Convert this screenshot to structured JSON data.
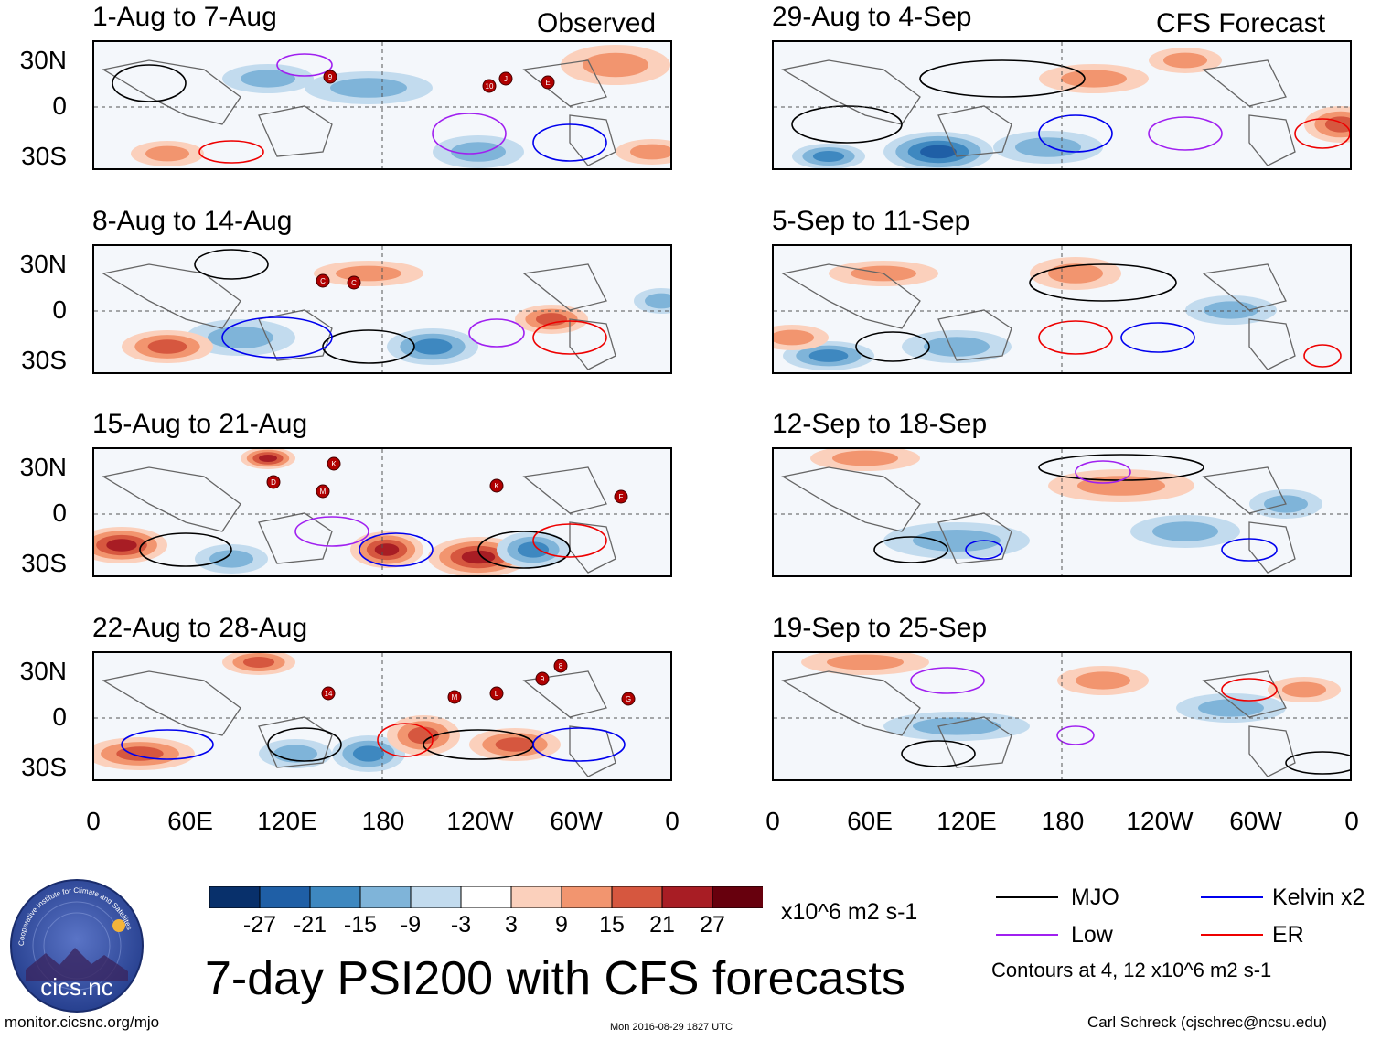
{
  "panels": {
    "observed_tag": "Observed",
    "forecast_tag": "CFS Forecast",
    "titles": [
      "1-Aug to 7-Aug",
      "8-Aug to 14-Aug",
      "15-Aug to 21-Aug",
      "22-Aug to 28-Aug",
      "29-Aug to 4-Sep",
      "5-Sep to 11-Sep",
      "12-Sep to 18-Sep",
      "19-Sep to 25-Sep"
    ]
  },
  "axes": {
    "lat_labels": [
      "30N",
      "0",
      "30S"
    ],
    "lon_labels": [
      "0",
      "60E",
      "120E",
      "180",
      "120W",
      "60W",
      "0"
    ]
  },
  "colorbar": {
    "labels": [
      "-27",
      "-21",
      "-15",
      "-9",
      "-3",
      "3",
      "9",
      "15",
      "21",
      "27"
    ],
    "colors": [
      "#08306b",
      "#1f5fa6",
      "#3e88c0",
      "#7fb4d9",
      "#c2dbee",
      "#ffffff",
      "#fbd0bc",
      "#f2956f",
      "#d6573f",
      "#a81d24",
      "#67000d"
    ],
    "units": "x10^6 m2 s-1"
  },
  "legend": {
    "items": [
      {
        "label": "MJO",
        "color": "#000000"
      },
      {
        "label": "Kelvin x2",
        "color": "#0000ee"
      },
      {
        "label": "Low",
        "color": "#a020f0"
      },
      {
        "label": "ER",
        "color": "#ee0000"
      }
    ],
    "contours_note": "Contours at 4, 12 x10^6 m2 s-1"
  },
  "storm_markers": {
    "panel1": [
      "9",
      "10",
      "J",
      "E"
    ],
    "panel2": [
      "C",
      "C"
    ],
    "panel3": [
      "D",
      "K",
      "M",
      "K",
      "F"
    ],
    "panel4": [
      "14",
      "M",
      "L",
      "9",
      "8",
      "G"
    ]
  },
  "chart_data": {
    "type": "heatmap",
    "title": "7-day PSI200 with CFS forecasts",
    "variable": "PSI200 anomaly",
    "units": "x10^6 m2 s-1",
    "x_range": [
      0,
      360
    ],
    "y_range": [
      -40,
      40
    ],
    "observed_periods": [
      "1-Aug to 7-Aug",
      "8-Aug to 14-Aug",
      "15-Aug to 21-Aug",
      "22-Aug to 28-Aug"
    ],
    "forecast_periods": [
      "29-Aug to 4-Sep",
      "5-Sep to 11-Sep",
      "12-Sep to 18-Sep",
      "19-Sep to 25-Sep"
    ],
    "color_levels": [
      -27,
      -21,
      -15,
      -9,
      -3,
      3,
      9,
      15,
      21,
      27
    ],
    "contour_levels": [
      4,
      12
    ]
  },
  "footer": {
    "logo_text": "cics.nc",
    "logo_ring_text": "Cooperative Institute for Climate and Satellites",
    "url": "monitor.cicsnc.org/mjo",
    "timestamp": "Mon 2016-08-29 1827 UTC",
    "author": "Carl Schreck (cjschrec@ncsu.edu)",
    "main_title": "7-day PSI200 with CFS forecasts"
  }
}
